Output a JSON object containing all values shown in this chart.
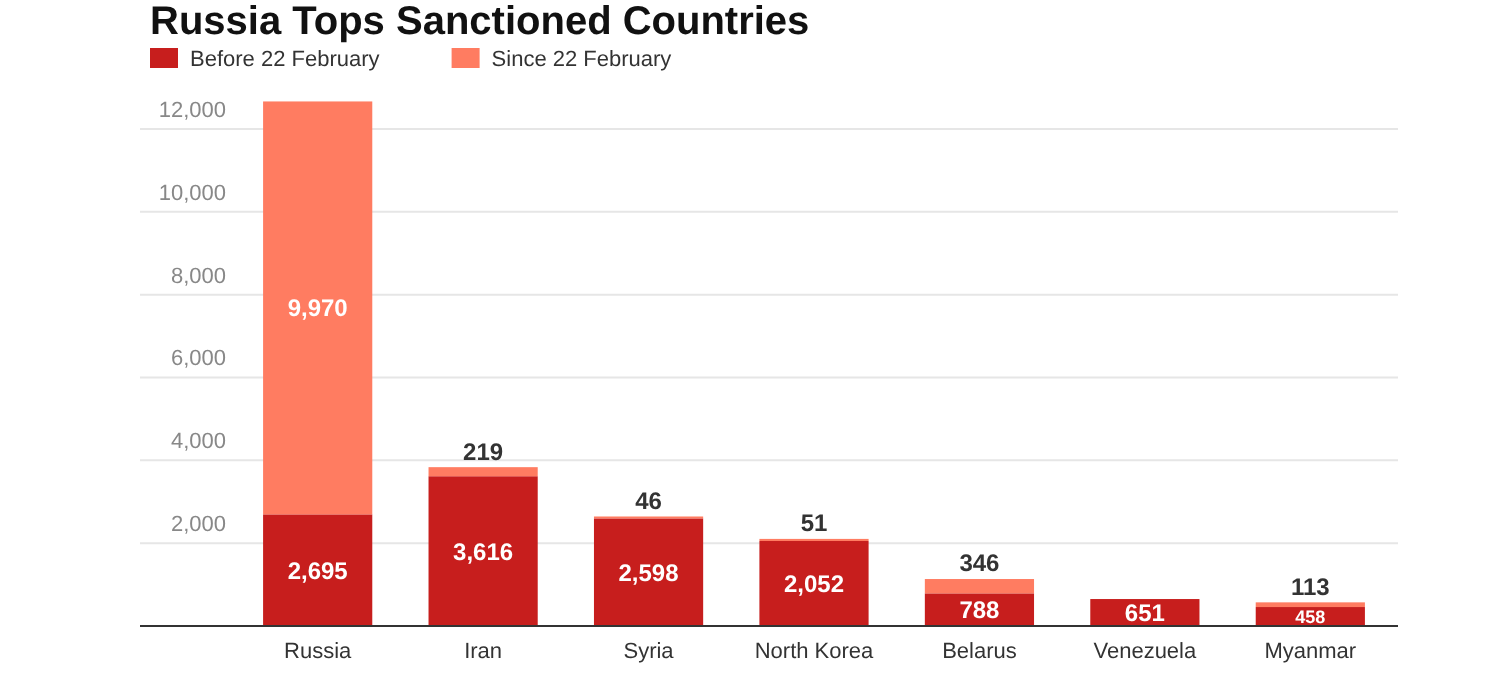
{
  "chart_data": {
    "type": "bar",
    "title": "Russia Tops Sanctioned Countries",
    "categories": [
      "Russia",
      "Iran",
      "Syria",
      "North Korea",
      "Belarus",
      "Venezuela",
      "Myanmar"
    ],
    "series": [
      {
        "name": "Before 22 February",
        "color": "#c71e1d",
        "values": [
          2695,
          3616,
          2598,
          2052,
          788,
          651,
          458
        ],
        "value_labels": [
          "2,695",
          "3,616",
          "2,598",
          "2,052",
          "788",
          "651",
          "458"
        ]
      },
      {
        "name": "Since 22 February",
        "color": "#ff7c61",
        "values": [
          9970,
          219,
          46,
          51,
          346,
          null,
          113
        ],
        "value_labels": [
          "9,970",
          "219",
          "46",
          "51",
          "346",
          null,
          "113"
        ]
      }
    ],
    "stacked": true,
    "ylim": [
      0,
      12700
    ],
    "yticks": [
      {
        "value": 2000,
        "label": "2,000"
      },
      {
        "value": 4000,
        "label": "4,000"
      },
      {
        "value": 6000,
        "label": "6,000"
      },
      {
        "value": 8000,
        "label": "8,000"
      },
      {
        "value": 10000,
        "label": "10,000"
      },
      {
        "value": 12000,
        "label": "12,000"
      }
    ],
    "grid": "y",
    "legend": "top left"
  }
}
